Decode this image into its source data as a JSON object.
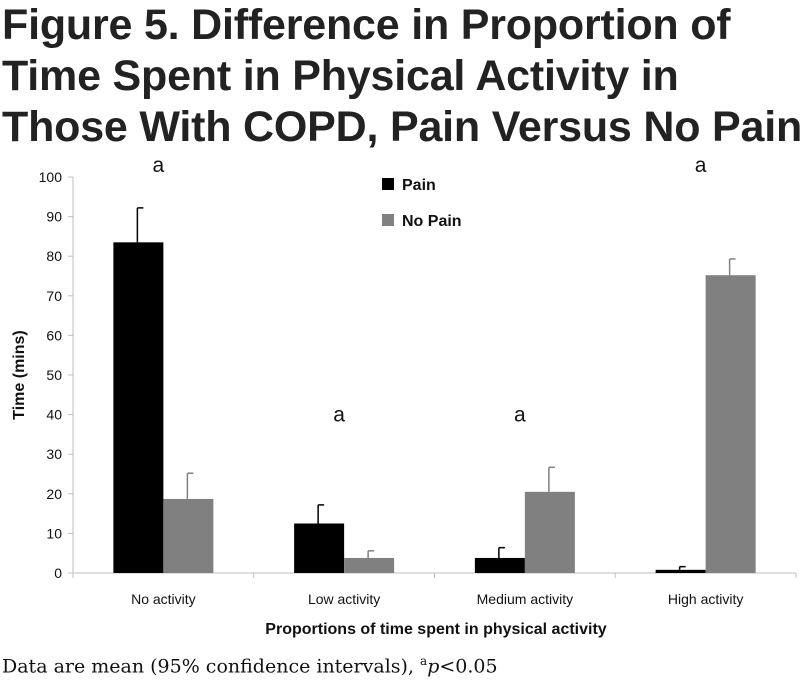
{
  "title_lines": [
    "Figure 5. Difference in Proportion of",
    "Time Spent in Physical Activity in",
    "Those With COPD, Pain Versus No Pain"
  ],
  "footnote": {
    "text": "Data are mean (95% confidence intervals),",
    "sup": "a",
    "p": "p",
    "rest": "<0.05"
  },
  "colors": {
    "pain": "#000000",
    "no_pain": "#808080",
    "axis": "#bfbfbf",
    "text": "#111111"
  },
  "chart_data": {
    "type": "bar",
    "xlabel": "Proportions of time spent in physical activity",
    "ylabel": "Time (mins)",
    "ylim": [
      0,
      100
    ],
    "yticks": [
      0,
      10,
      20,
      30,
      40,
      50,
      60,
      70,
      80,
      90,
      100
    ],
    "grid": false,
    "legend_position": "top-center",
    "categories": [
      "No activity",
      "Low activity",
      "Medium activity",
      "High activity"
    ],
    "series": [
      {
        "name": "Pain",
        "values": [
          83.5,
          12.5,
          3.8,
          0.8
        ],
        "ci_upper": [
          92.2,
          17.2,
          6.4,
          1.6
        ]
      },
      {
        "name": "No Pain",
        "values": [
          18.7,
          3.8,
          20.5,
          75.2
        ],
        "ci_upper": [
          25.2,
          5.6,
          26.7,
          79.3
        ]
      }
    ],
    "annotations": [
      {
        "text": "a",
        "category": "No activity",
        "y": 103
      },
      {
        "text": "a",
        "category": "Low activity",
        "y": 40
      },
      {
        "text": "a",
        "category": "Medium activity",
        "y": 40
      },
      {
        "text": "a",
        "category": "High activity",
        "y": 103
      }
    ]
  }
}
